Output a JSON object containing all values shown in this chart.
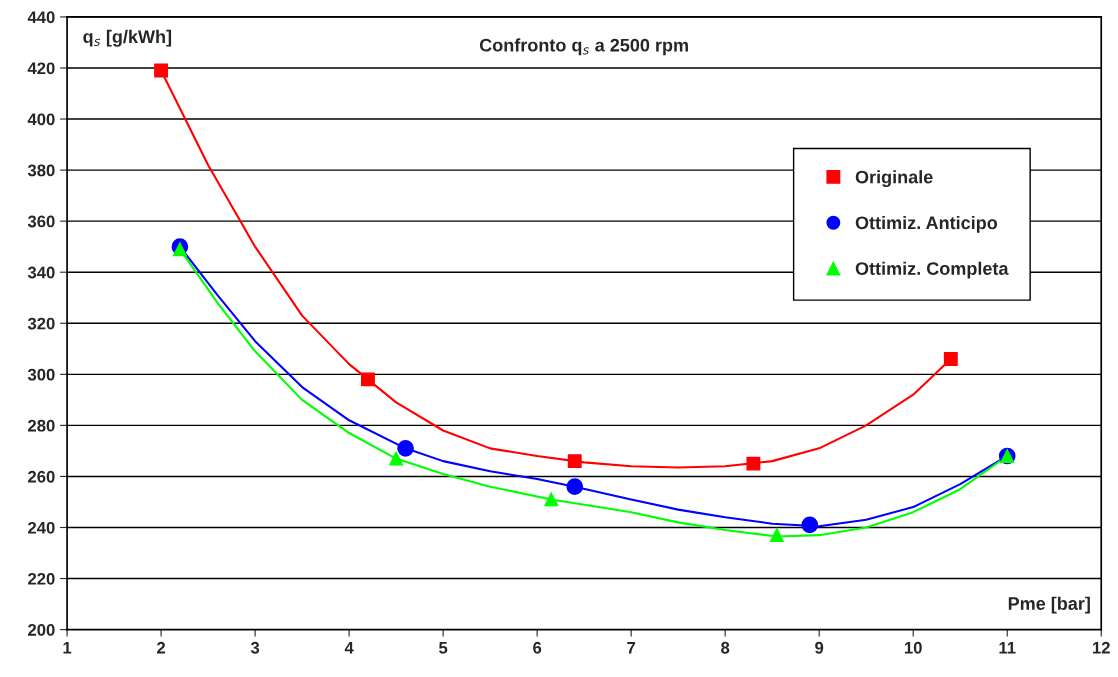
{
  "chart_data": {
    "type": "scatter",
    "title": "Confronto q$_{s}$ a 2500 rpm",
    "xlabel": "Pme [bar]",
    "ylabel": "q$_{s}$ [g/kWh]",
    "xlim": [
      1,
      12
    ],
    "xticks": [
      1,
      2,
      3,
      4,
      5,
      6,
      7,
      8,
      9,
      10,
      11,
      12
    ],
    "ylim": [
      200,
      440
    ],
    "yticks": [
      200,
      220,
      240,
      260,
      280,
      300,
      320,
      340,
      360,
      380,
      400,
      420,
      440
    ],
    "grid": "y",
    "legend": "top right",
    "series": [
      {
        "type": "line",
        "color": "#ff0000",
        "x": [
          2.0,
          2.5,
          3.0,
          3.5,
          4.0,
          4.5,
          5.0,
          5.5,
          6.0,
          6.5,
          7.0,
          7.5,
          8.0,
          8.5,
          9.0,
          9.5,
          10.0,
          10.4
        ],
        "values": [
          419,
          382,
          350,
          323,
          304,
          289,
          278,
          271,
          268,
          265.5,
          264,
          263.5,
          264,
          266,
          271,
          280,
          292,
          306
        ]
      },
      {
        "type": "line",
        "color": "#0000ff",
        "x": [
          2.2,
          2.6,
          3.0,
          3.5,
          4.0,
          4.6,
          5.0,
          5.5,
          6.0,
          6.4,
          7.0,
          7.5,
          8.0,
          8.5,
          9.0,
          9.5,
          10.0,
          10.5,
          11.0
        ],
        "values": [
          350,
          331,
          313,
          295,
          282,
          271,
          266,
          262,
          259,
          256,
          251,
          247,
          244,
          241.5,
          240.5,
          243,
          248,
          257,
          268
        ]
      },
      {
        "type": "line",
        "color": "#00ff00",
        "x": [
          2.2,
          2.6,
          3.0,
          3.5,
          4.0,
          4.5,
          5.0,
          5.5,
          6.15,
          7.0,
          7.5,
          8.0,
          8.55,
          9.0,
          9.5,
          10.0,
          10.5,
          11.0
        ],
        "values": [
          349,
          328,
          309,
          290,
          277,
          267,
          261,
          256,
          251,
          246,
          242,
          239,
          236.5,
          237,
          240,
          246,
          255,
          268
        ]
      },
      {
        "name": "Originale",
        "color": "#ff0000",
        "marker": "square",
        "x": [
          2.0,
          4.2,
          6.4,
          8.3,
          10.4
        ],
        "values": [
          419,
          298,
          266,
          265,
          306
        ]
      },
      {
        "name": "Ottimiz. Anticipo",
        "color": "#0000ff",
        "marker": "circle",
        "x": [
          2.2,
          4.6,
          6.4,
          8.9,
          11.0
        ],
        "values": [
          350,
          271,
          256,
          241,
          268
        ]
      },
      {
        "name": "Ottimiz. Completa",
        "color": "#00ff00",
        "marker": "triangle",
        "x": [
          2.2,
          4.5,
          6.15,
          8.55,
          11.0
        ],
        "values": [
          349,
          267,
          251,
          237,
          268
        ]
      }
    ]
  }
}
